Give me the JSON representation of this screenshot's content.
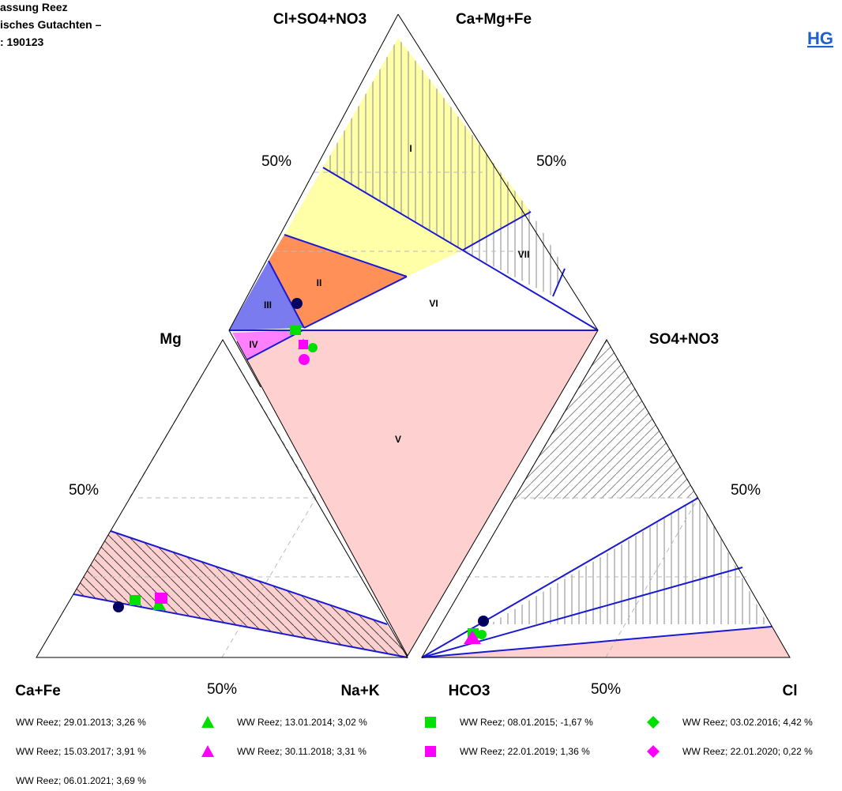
{
  "header": {
    "title_lines": [
      "assung Reez",
      "isches Gutachten –",
      ": 190123"
    ],
    "link": "HG"
  },
  "axes": {
    "top_left": "Cl+SO4+NO3",
    "top_right": "Ca+Mg+Fe",
    "top_left_half": "50%",
    "top_right_half": "50%",
    "left_top": "Mg",
    "right_top": "SO4+NO3",
    "left_half": "50%",
    "right_half": "50%",
    "left_bottom_left": "Ca+Fe",
    "left_bottom_half": "50%",
    "left_bottom_right": "Na+K",
    "right_bottom_left": "HCO3",
    "right_bottom_half": "50%",
    "right_bottom_right": "Cl"
  },
  "regions": [
    "I",
    "II",
    "III",
    "IV",
    "V",
    "VI",
    "VII"
  ],
  "legend": [
    "WW Reez; 29.01.2013; 3,26 %",
    "WW Reez; 13.01.2014; 3,02 %",
    "WW Reez; 08.01.2015; -1,67 %",
    "WW Reez; 03.02.2016; 4,42 %",
    "WW Reez; 15.03.2017; 3,91 %",
    "WW Reez; 30.11.2018; 3,31 %",
    "WW Reez; 22.01.2019; 1,36 %",
    "WW Reez; 22.01.2020; 0,22 %",
    "WW Reez; 06.01.2021; 3,69 %"
  ]
}
